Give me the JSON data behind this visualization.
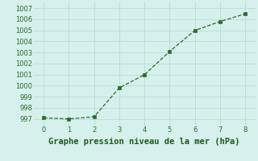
{
  "x": [
    0,
    1,
    2,
    3,
    4,
    5,
    6,
    7,
    8
  ],
  "y": [
    997.1,
    997.0,
    997.2,
    999.8,
    1001.0,
    1003.1,
    1005.0,
    1005.8,
    1006.5
  ],
  "line_color": "#2d6a2d",
  "marker_color": "#2d6a2d",
  "background_color": "#d6f0eb",
  "grid_color": "#b8ddd8",
  "xlabel": "Graphe pression niveau de la mer (hPa)",
  "xlabel_color": "#1a5c1a",
  "xlabel_fontsize": 7.5,
  "tick_label_color": "#2d6a2d",
  "tick_label_fontsize": 6.0,
  "ylim": [
    996.4,
    1007.6
  ],
  "xlim": [
    -0.4,
    8.4
  ],
  "yticks": [
    997,
    998,
    999,
    1000,
    1001,
    1002,
    1003,
    1004,
    1005,
    1006,
    1007
  ],
  "xticks": [
    0,
    1,
    2,
    3,
    4,
    5,
    6,
    7,
    8
  ]
}
